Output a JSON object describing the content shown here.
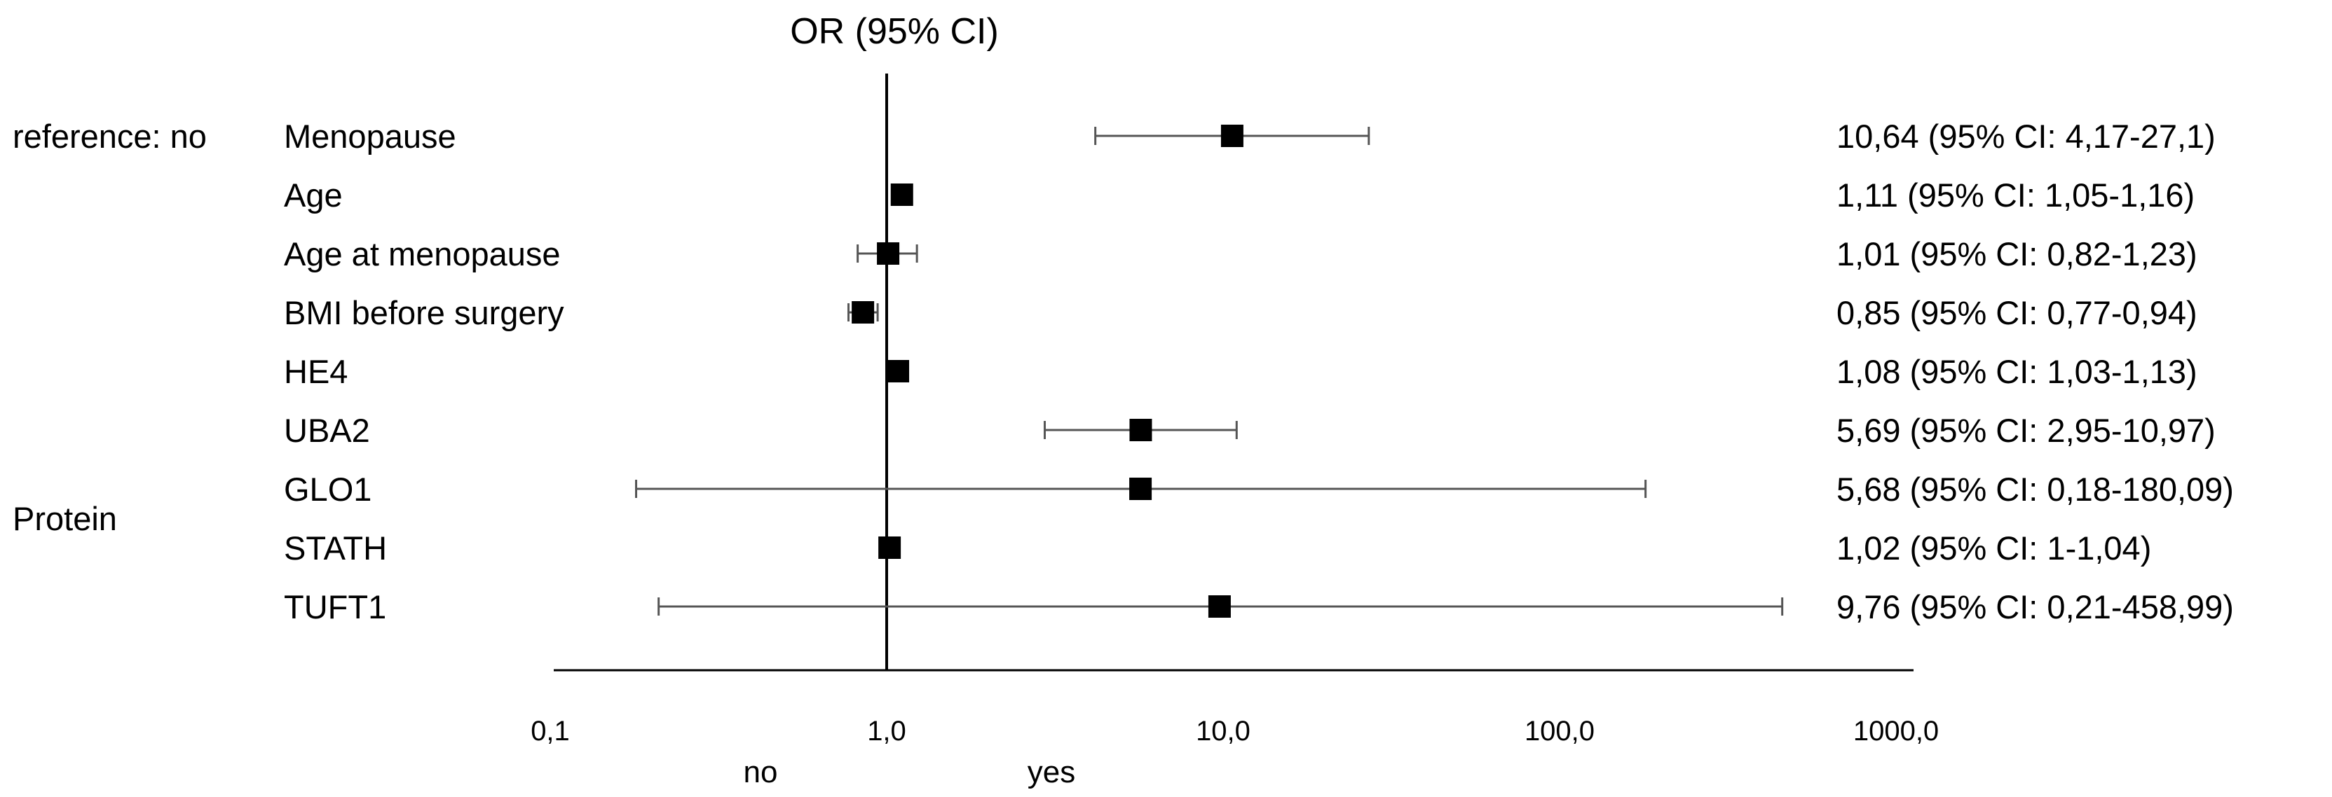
{
  "chart_data": {
    "type": "forest",
    "title": "OR (95% CI)",
    "x_scale": "log",
    "xlim": [
      0.1,
      1000
    ],
    "reference_value": 1,
    "xticks": [
      {
        "value": 0.1,
        "label": "0,1"
      },
      {
        "value": 1,
        "label": "1,0"
      },
      {
        "value": 10,
        "label": "10,0"
      },
      {
        "value": 100,
        "label": "100,0"
      },
      {
        "value": 1000,
        "label": "1000,0"
      }
    ],
    "direction_labels": {
      "left": "no",
      "right": "yes"
    },
    "groups": [
      {
        "label": "reference: no",
        "row": 0
      },
      {
        "label": "Protein",
        "row": 6.5
      }
    ],
    "rows": [
      {
        "label": "Menopause",
        "or": 10.64,
        "lo": 4.17,
        "hi": 27.1,
        "text": "10,64 (95% CI: 4,17-27,1)"
      },
      {
        "label": "Age",
        "or": 1.11,
        "lo": 1.05,
        "hi": 1.16,
        "text": "1,11 (95% CI: 1,05-1,16)"
      },
      {
        "label": "Age at menopause",
        "or": 1.01,
        "lo": 0.82,
        "hi": 1.23,
        "text": "1,01 (95% CI: 0,82-1,23)"
      },
      {
        "label": "BMI before surgery",
        "or": 0.85,
        "lo": 0.77,
        "hi": 0.94,
        "text": "0,85 (95% CI: 0,77-0,94)"
      },
      {
        "label": "HE4",
        "or": 1.08,
        "lo": 1.03,
        "hi": 1.13,
        "text": "1,08 (95% CI: 1,03-1,13)"
      },
      {
        "label": "UBA2",
        "or": 5.69,
        "lo": 2.95,
        "hi": 10.97,
        "text": "5,69 (95% CI: 2,95-10,97)"
      },
      {
        "label": "GLO1",
        "or": 5.68,
        "lo": 0.18,
        "hi": 180.09,
        "text": "5,68 (95% CI: 0,18-180,09)"
      },
      {
        "label": "STATH",
        "or": 1.02,
        "lo": 1,
        "hi": 1.04,
        "text": "1,02 (95% CI: 1-1,04)"
      },
      {
        "label": "TUFT1",
        "or": 9.76,
        "lo": 0.21,
        "hi": 458.99,
        "text": "9,76 (95% CI: 0,21-458,99)"
      }
    ]
  }
}
